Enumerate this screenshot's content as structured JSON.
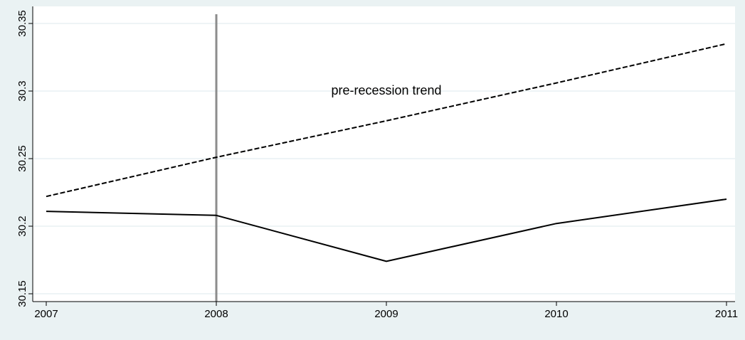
{
  "chart_data": {
    "type": "line",
    "title": "",
    "xlabel": "",
    "ylabel": "",
    "x": [
      2007,
      2008,
      2009,
      2010,
      2011
    ],
    "xlim": [
      2007,
      2011
    ],
    "ylim": [
      30.15,
      30.35
    ],
    "yticks": [
      30.15,
      30.2,
      30.25,
      30.3,
      30.35
    ],
    "ytick_labels": [
      "30.15",
      "30.2",
      "30.25",
      "30.3",
      "30.35"
    ],
    "xtick_labels": [
      "2007",
      "2008",
      "2009",
      "2010",
      "2011"
    ],
    "grid": true,
    "legend": "none",
    "series": [
      {
        "values": [
          30.211,
          30.208,
          30.174,
          30.202,
          30.22
        ],
        "style": "solid",
        "color": "#000000"
      },
      {
        "values": [
          30.222,
          30.251,
          30.278,
          30.306,
          30.335
        ],
        "style": "dashed",
        "color": "#000000"
      }
    ],
    "reference_line": {
      "x": 2008,
      "color": "#8c8c8c"
    },
    "annotations": [
      {
        "text": "pre-recession trend",
        "x": 2009,
        "y": 30.3
      }
    ]
  }
}
